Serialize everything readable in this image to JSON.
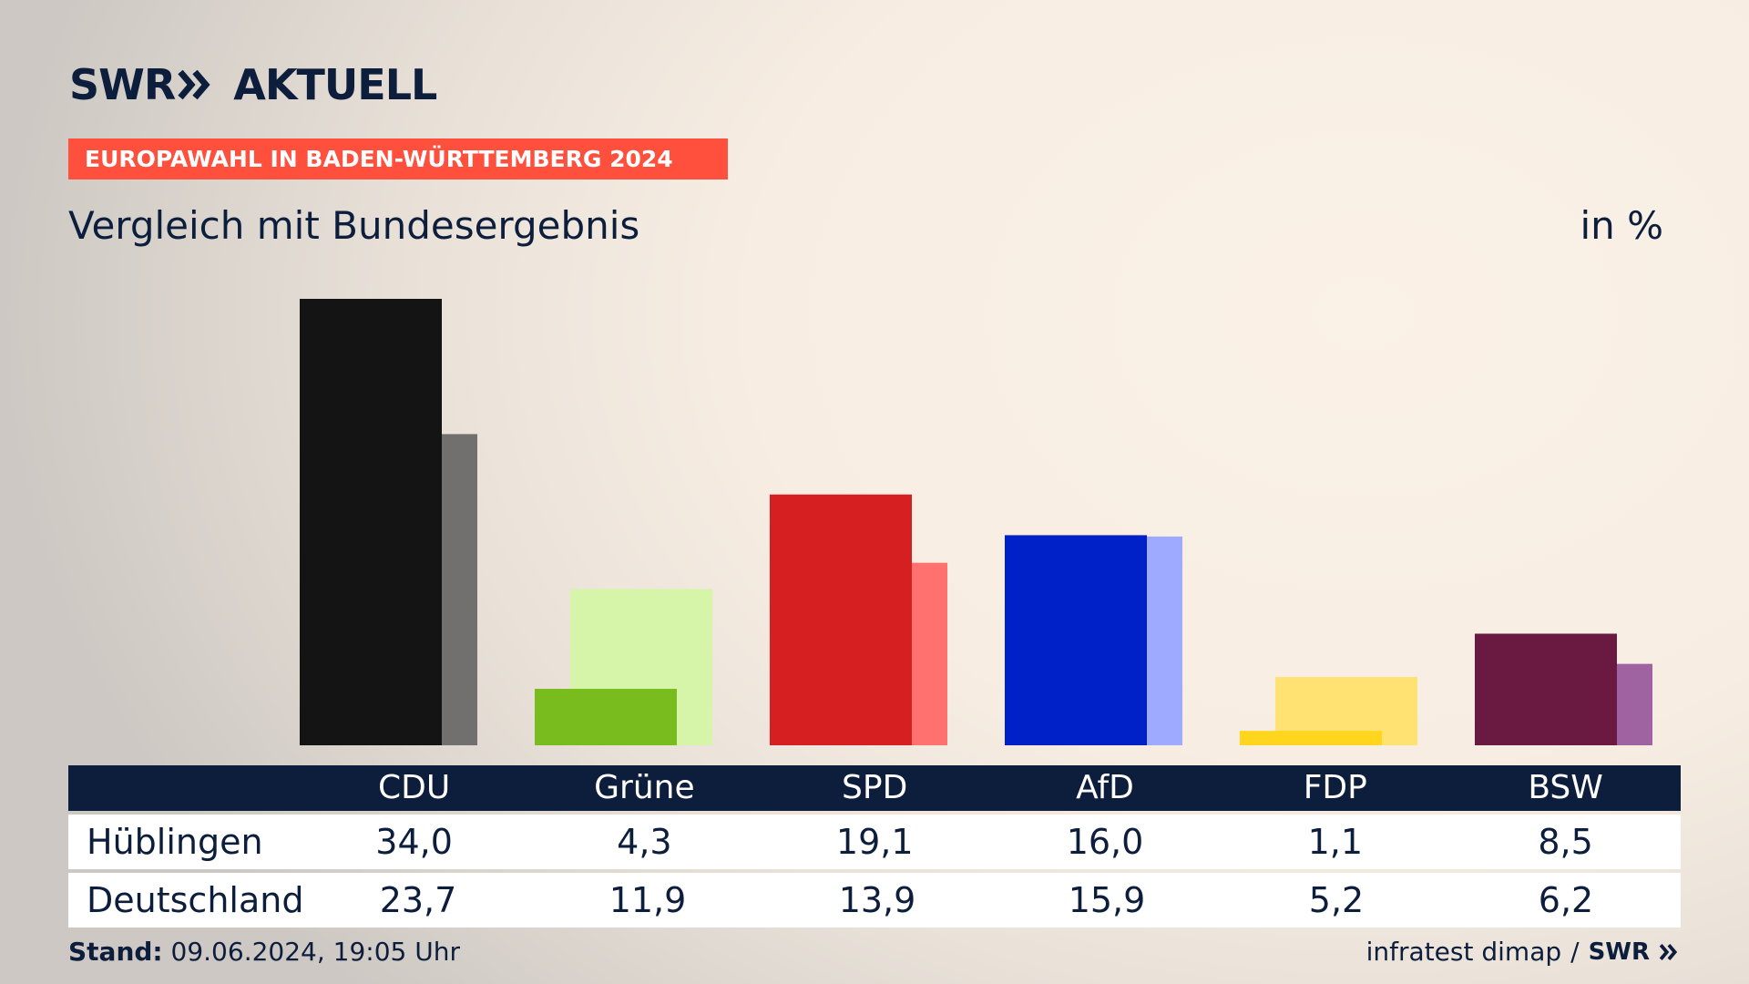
{
  "header": {
    "logo_left": "SWR",
    "logo_right": "AKTUELL",
    "tag": "EUROPAWAHL IN BADEN-WÜRTTEMBERG 2024",
    "subtitle": "Vergleich mit Bundesergebnis",
    "unit": "in %"
  },
  "table": {
    "rows": [
      {
        "label": "Hüblingen",
        "values": [
          "34,0",
          "4,3",
          "19,1",
          "16,0",
          "1,1",
          "8,5"
        ]
      },
      {
        "label": "Deutschland",
        "values": [
          "23,7",
          "11,9",
          "13,9",
          "15,9",
          "5,2",
          "6,2"
        ]
      }
    ]
  },
  "footer": {
    "stand_label": "Stand:",
    "stand_value": "09.06.2024, 19:05 Uhr",
    "source": "infratest dimap",
    "separator": "/",
    "source_logo": "SWR"
  },
  "chart_data": {
    "type": "bar",
    "categories": [
      "CDU",
      "Grüne",
      "SPD",
      "AfD",
      "FDP",
      "BSW"
    ],
    "series": [
      {
        "name": "Hüblingen",
        "values": [
          34.0,
          4.3,
          19.1,
          16.0,
          1.1,
          8.5
        ],
        "colors": [
          "#151414",
          "#78bd1d",
          "#d61f21",
          "#0021c8",
          "#ffd61d",
          "#6a1a40"
        ]
      },
      {
        "name": "Deutschland",
        "values": [
          23.7,
          11.9,
          13.9,
          15.9,
          5.2,
          6.2
        ],
        "colors": [
          "#72706e",
          "#d7f5a9",
          "#ff716f",
          "#9daaff",
          "#ffe271",
          "#9e63a0"
        ]
      }
    ],
    "ylim": [
      0,
      34.0
    ],
    "grid": false,
    "title": "",
    "xlabel": "",
    "ylabel": ""
  }
}
